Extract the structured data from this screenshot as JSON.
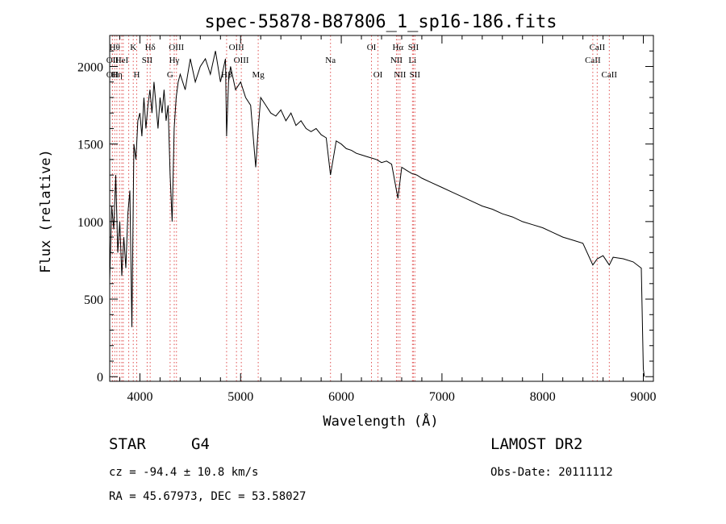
{
  "chart_data": {
    "type": "line",
    "title": "spec-55878-B87806_1_sp16-186.fits",
    "xlabel": "Wavelength (Å)",
    "ylabel": "Flux (relative)",
    "xlim": [
      3700,
      9100
    ],
    "ylim": [
      -30,
      2200
    ],
    "xticks": [
      4000,
      5000,
      6000,
      7000,
      8000,
      9000
    ],
    "yticks": [
      0,
      500,
      1000,
      1500,
      2000
    ],
    "line_color": "#000000",
    "marker_color": "#e05050",
    "series": [
      {
        "x": [
          3700,
          3720,
          3740,
          3760,
          3780,
          3800,
          3820,
          3840,
          3860,
          3880,
          3900,
          3920,
          3940,
          3960,
          3980,
          4000,
          4020,
          4040,
          4060,
          4080,
          4100,
          4120,
          4140,
          4160,
          4180,
          4200,
          4220,
          4240,
          4260,
          4280,
          4300,
          4320,
          4340,
          4360,
          4380,
          4400,
          4450,
          4500,
          4550,
          4600,
          4650,
          4700,
          4750,
          4800,
          4850,
          4861,
          4880,
          4900,
          4950,
          5000,
          5050,
          5100,
          5150,
          5175,
          5200,
          5250,
          5300,
          5350,
          5400,
          5450,
          5500,
          5550,
          5600,
          5650,
          5700,
          5750,
          5800,
          5850,
          5893,
          5950,
          6000,
          6050,
          6100,
          6150,
          6200,
          6250,
          6300,
          6350,
          6400,
          6450,
          6500,
          6563,
          6600,
          6650,
          6700,
          6750,
          6800,
          6900,
          7000,
          7100,
          7200,
          7300,
          7400,
          7500,
          7600,
          7700,
          7800,
          7900,
          8000,
          8100,
          8200,
          8300,
          8400,
          8498,
          8542,
          8600,
          8662,
          8700,
          8800,
          8900,
          8980,
          9000,
          9010
        ],
        "y": [
          620,
          1100,
          950,
          1300,
          800,
          1000,
          650,
          900,
          700,
          1050,
          1200,
          320,
          1500,
          1400,
          1650,
          1700,
          1550,
          1800,
          1600,
          1750,
          1850,
          1700,
          1900,
          1750,
          1600,
          1800,
          1700,
          1850,
          1650,
          1750,
          1300,
          1000,
          1600,
          1800,
          1900,
          1950,
          1850,
          2050,
          1900,
          2000,
          2050,
          1950,
          2100,
          1900,
          2050,
          1550,
          1900,
          2000,
          1850,
          1900,
          1800,
          1750,
          1350,
          1600,
          1800,
          1750,
          1700,
          1680,
          1720,
          1650,
          1700,
          1620,
          1650,
          1600,
          1580,
          1600,
          1560,
          1540,
          1300,
          1520,
          1500,
          1470,
          1460,
          1440,
          1430,
          1420,
          1410,
          1400,
          1380,
          1390,
          1370,
          1150,
          1350,
          1330,
          1310,
          1300,
          1280,
          1250,
          1220,
          1190,
          1160,
          1130,
          1100,
          1080,
          1050,
          1030,
          1000,
          980,
          960,
          930,
          900,
          880,
          860,
          720,
          760,
          780,
          720,
          770,
          760,
          740,
          700,
          50,
          0
        ]
      }
    ],
    "spectral_lines": [
      {
        "wl": 3727,
        "label": "OII",
        "row": 2
      },
      {
        "wl": 3727,
        "label": "OII",
        "row": 3
      },
      {
        "wl": 3750,
        "label": "Hθ",
        "row": 1
      },
      {
        "wl": 3771,
        "label": "Hη",
        "row": 3
      },
      {
        "wl": 3798,
        "label": "",
        "row": 0
      },
      {
        "wl": 3820,
        "label": "HeI",
        "row": 2
      },
      {
        "wl": 3835,
        "label": "",
        "row": 0
      },
      {
        "wl": 3889,
        "label": "",
        "row": 0
      },
      {
        "wl": 3934,
        "label": "K",
        "row": 1
      },
      {
        "wl": 3968,
        "label": "H",
        "row": 3
      },
      {
        "wl": 4072,
        "label": "SII",
        "row": 2
      },
      {
        "wl": 4102,
        "label": "Hδ",
        "row": 1
      },
      {
        "wl": 4300,
        "label": "G",
        "row": 3
      },
      {
        "wl": 4341,
        "label": "Hγ",
        "row": 2
      },
      {
        "wl": 4363,
        "label": "OIII",
        "row": 1
      },
      {
        "wl": 4861,
        "label": "Hβ",
        "row": 3
      },
      {
        "wl": 4959,
        "label": "OIII",
        "row": 1
      },
      {
        "wl": 5007,
        "label": "OIII",
        "row": 2
      },
      {
        "wl": 5175,
        "label": "Mg",
        "row": 3
      },
      {
        "wl": 5893,
        "label": "Na",
        "row": 2
      },
      {
        "wl": 6300,
        "label": "OI",
        "row": 1
      },
      {
        "wl": 6364,
        "label": "OI",
        "row": 3
      },
      {
        "wl": 6548,
        "label": "NII",
        "row": 2
      },
      {
        "wl": 6563,
        "label": "Hα",
        "row": 1
      },
      {
        "wl": 6583,
        "label": "NII",
        "row": 3
      },
      {
        "wl": 6707,
        "label": "Li",
        "row": 2
      },
      {
        "wl": 6716,
        "label": "SII",
        "row": 1
      },
      {
        "wl": 6731,
        "label": "SII",
        "row": 3
      },
      {
        "wl": 8498,
        "label": "CaII",
        "row": 2
      },
      {
        "wl": 8542,
        "label": "CaII",
        "row": 1
      },
      {
        "wl": 8662,
        "label": "CaII",
        "row": 3
      }
    ]
  },
  "info": {
    "class": "STAR",
    "subclass": "G4",
    "survey": "LAMOST DR2",
    "cz": "cz = -94.4 ± 10.8 km/s",
    "obs_date": "Obs-Date: 20111112",
    "coords": "RA =  45.67973, DEC =  53.58027"
  }
}
